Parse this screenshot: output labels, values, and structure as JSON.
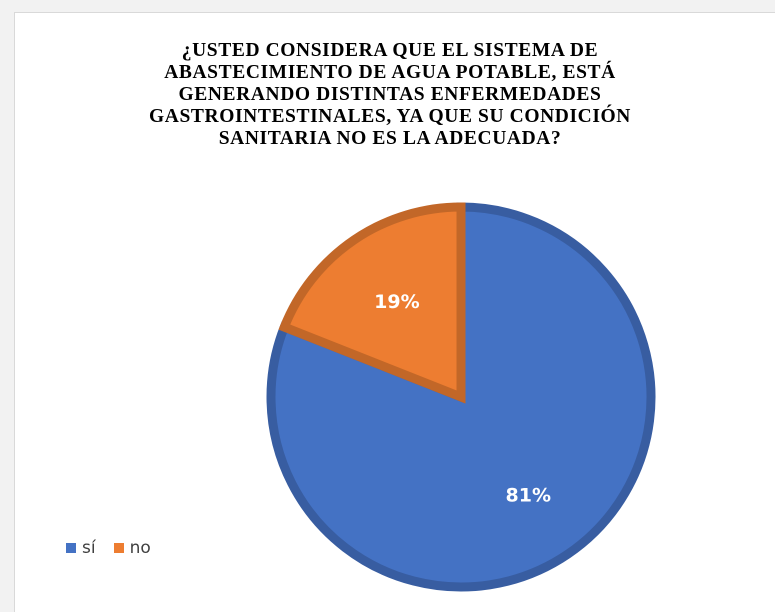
{
  "chart_data": {
    "type": "pie",
    "title": "¿USTED CONSIDERA QUE EL SISTEMA DE ABASTECIMIENTO DE AGUA POTABLE, ESTÁ GENERANDO DISTINTAS ENFERMEDADES GASTROINTESTINALES, YA QUE SU CONDICIÓN SANITARIA NO ES LA ADECUADA?",
    "title_lines": [
      "¿USTED CONSIDERA QUE EL SISTEMA DE",
      "ABASTECIMIENTO DE AGUA POTABLE, ESTÁ",
      "GENERANDO DISTINTAS ENFERMEDADES",
      "GASTROINTESTINALES, YA QUE SU CONDICIÓN",
      "SANITARIA NO ES LA ADECUADA?"
    ],
    "categories": [
      "sí",
      "no"
    ],
    "values": [
      81,
      19
    ],
    "data_labels": [
      "81%",
      "19%"
    ],
    "colors": [
      "#4472c4",
      "#ed7d31"
    ],
    "legend_position": "bottom-left"
  }
}
